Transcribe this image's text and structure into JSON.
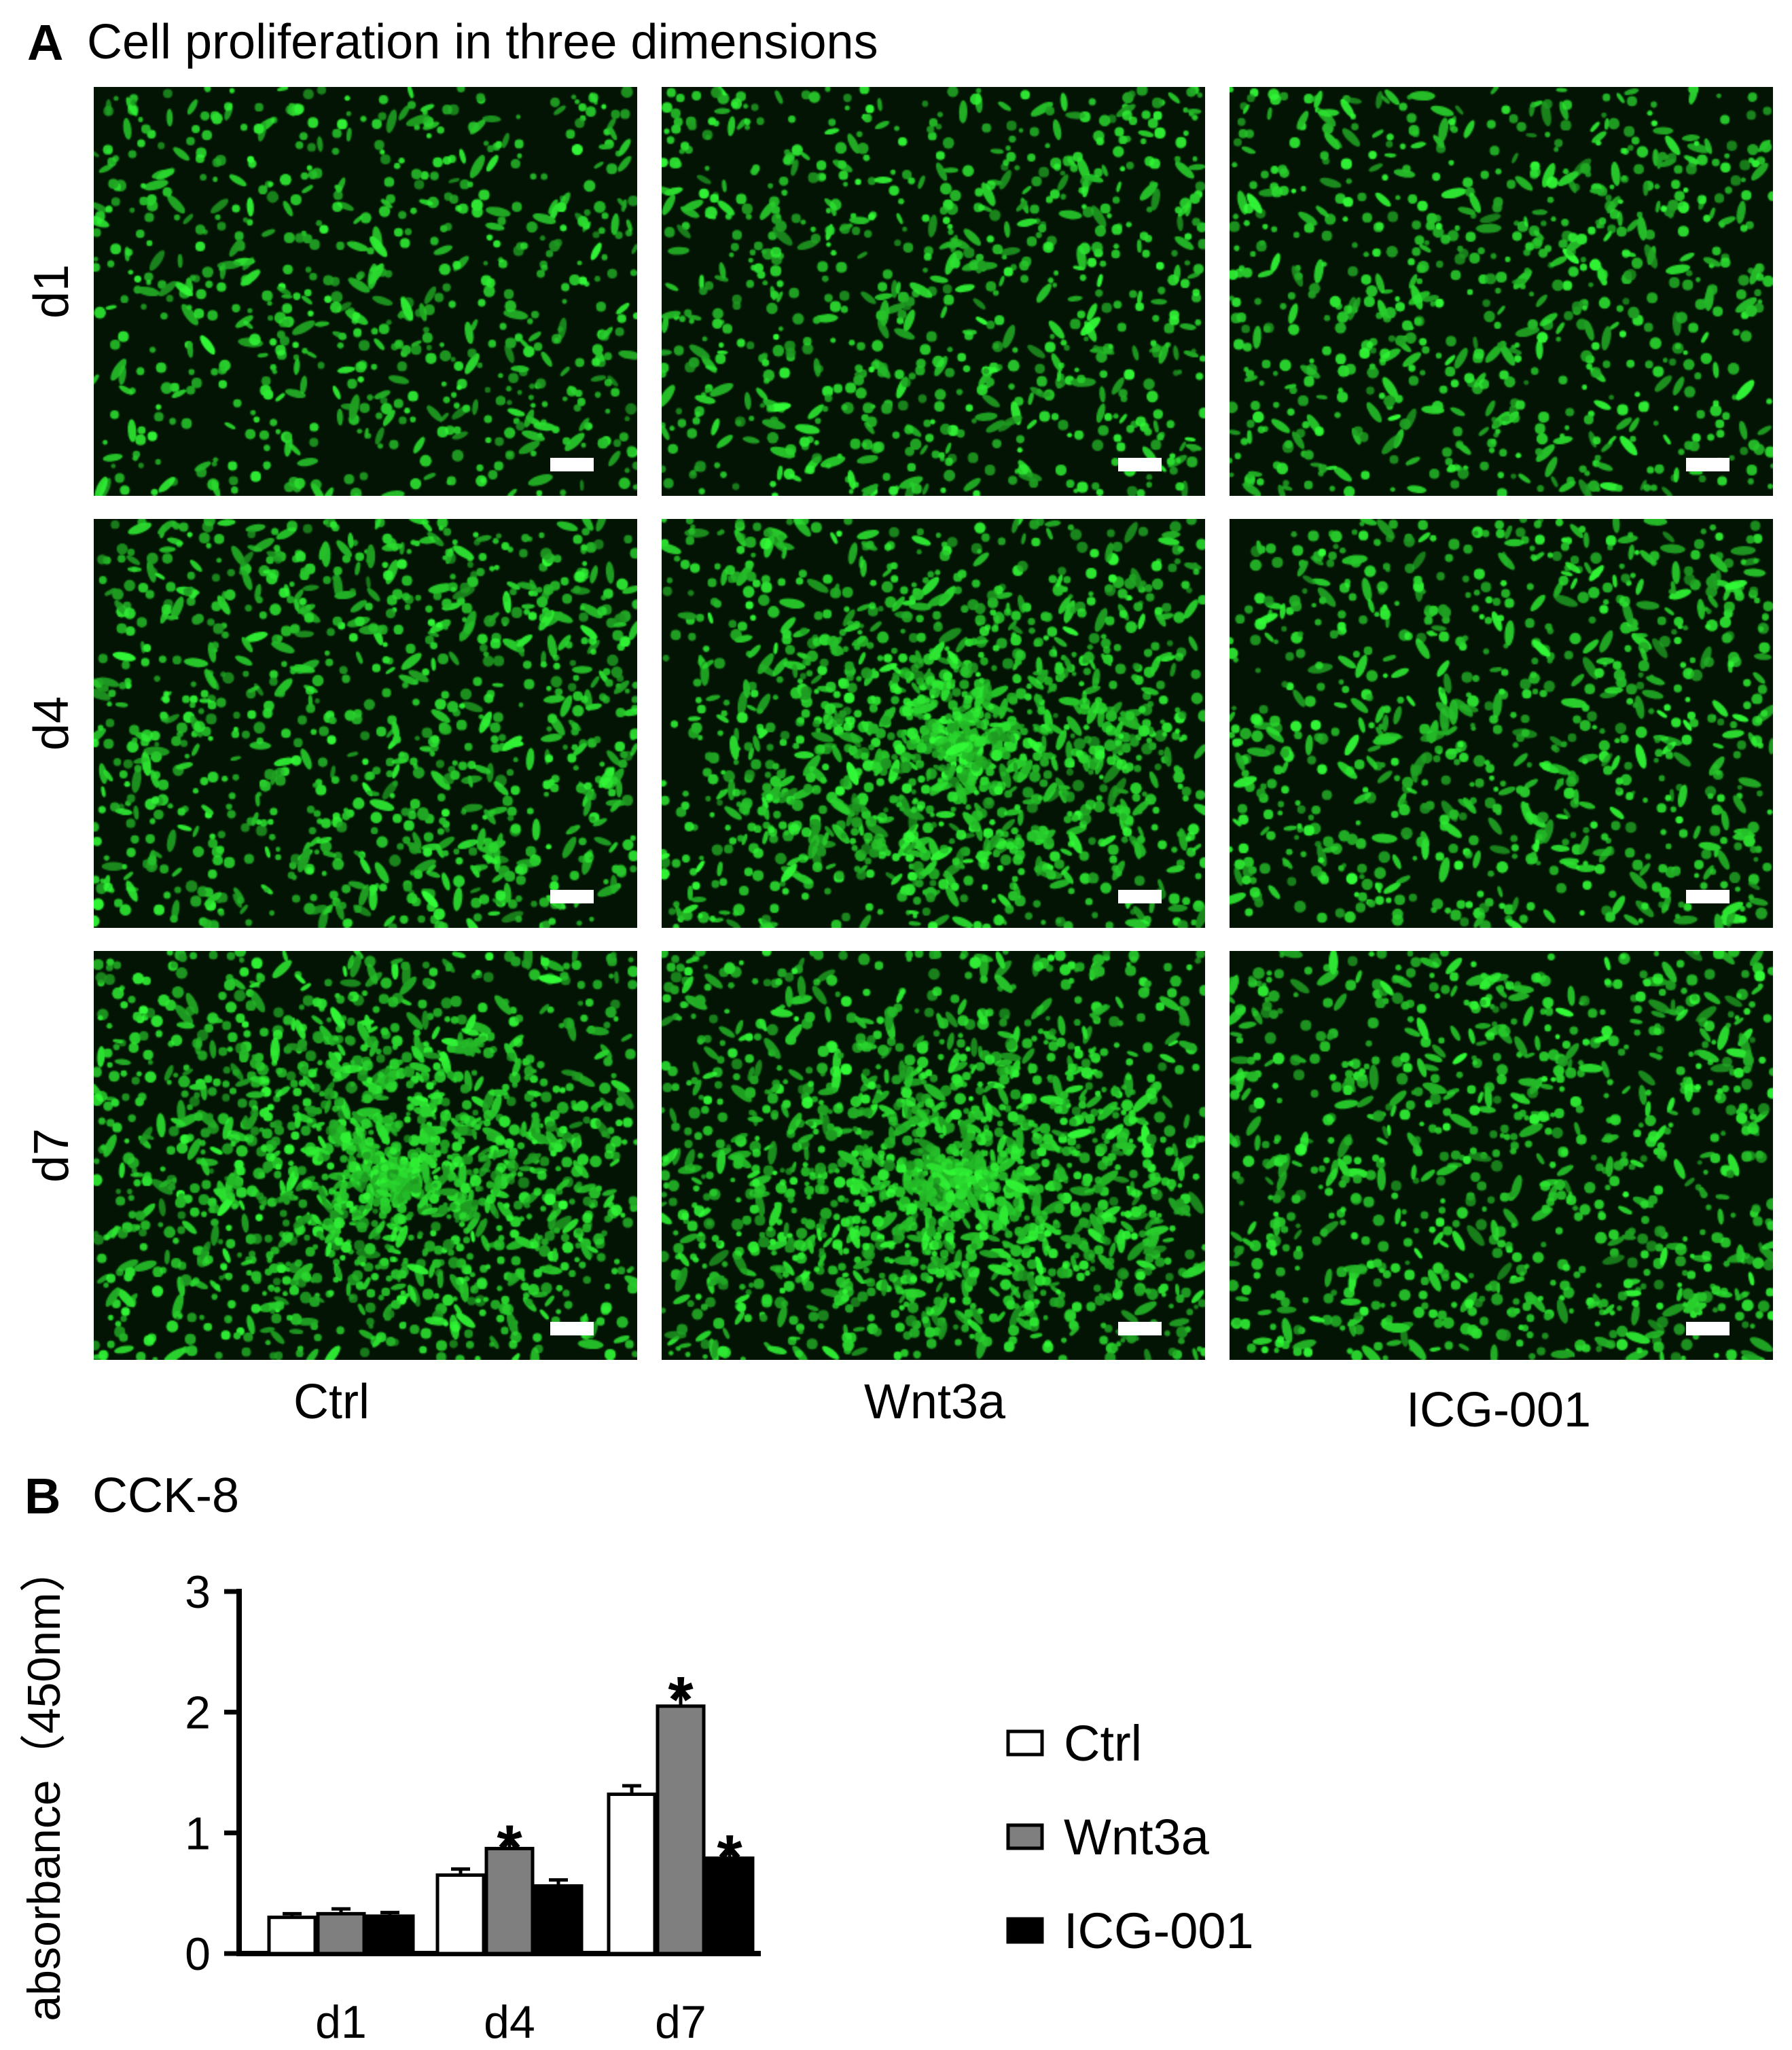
{
  "panel_a": {
    "letter": "A",
    "title": "Cell proliferation in three dimensions",
    "row_labels": [
      "d1",
      "d4",
      "d7"
    ],
    "col_labels": [
      "Ctrl",
      "Wnt3a",
      "ICG-001"
    ],
    "cell_density": [
      [
        0.3,
        0.36,
        0.34
      ],
      [
        0.5,
        0.85,
        0.4
      ],
      [
        0.95,
        1.0,
        0.45
      ]
    ],
    "colors": {
      "cell": "#33e03a",
      "background": "#041404",
      "scale_bar": "#ffffff"
    }
  },
  "panel_b": {
    "letter": "B",
    "title": "CCK-8"
  },
  "chart_data": {
    "type": "bar",
    "categories": [
      "d1",
      "d4",
      "d7"
    ],
    "ylabel": "absorbance（450nm）",
    "ylim": [
      0,
      3
    ],
    "yticks": [
      0,
      1,
      2,
      3
    ],
    "legend_position": "right",
    "series": [
      {
        "name": "Ctrl",
        "color": "#ffffff",
        "values": [
          0.3,
          0.65,
          1.32
        ],
        "errors": [
          0.03,
          0.05,
          0.07
        ],
        "significant": [
          false,
          false,
          false
        ]
      },
      {
        "name": "Wnt3a",
        "color": "#7f7f7f",
        "values": [
          0.33,
          0.87,
          2.05
        ],
        "errors": [
          0.04,
          0.1,
          0.15
        ],
        "significant": [
          false,
          true,
          true
        ]
      },
      {
        "name": "ICG-001",
        "color": "#000000",
        "values": [
          0.31,
          0.56,
          0.79
        ],
        "errors": [
          0.03,
          0.05,
          0.1
        ],
        "significant": [
          false,
          false,
          true
        ]
      }
    ],
    "significance_mark": "*"
  }
}
